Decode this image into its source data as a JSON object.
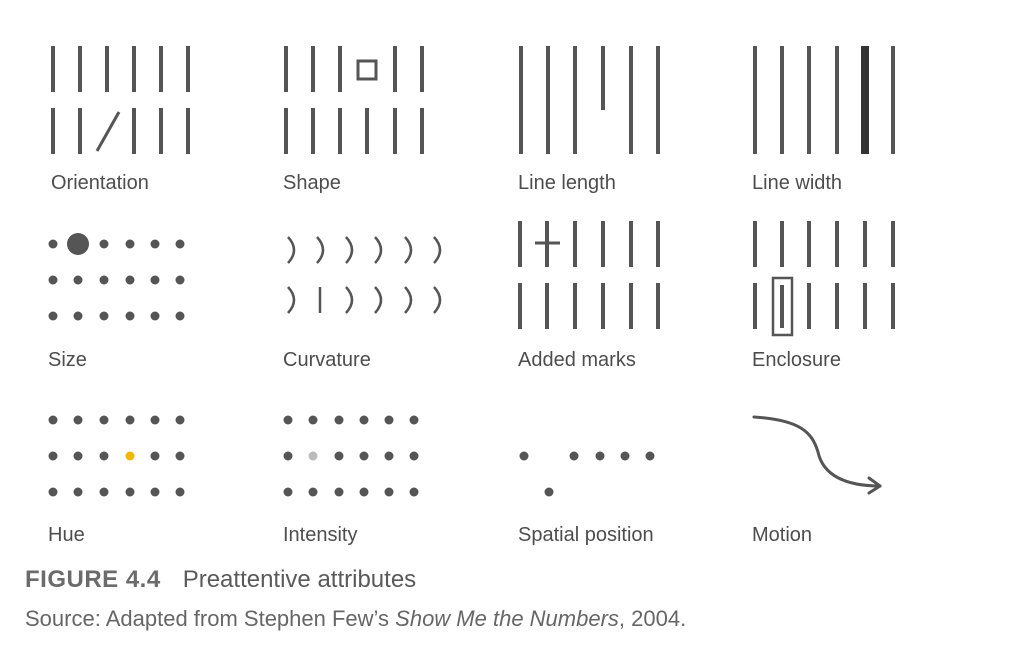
{
  "colors": {
    "ink": "#555555",
    "hue_highlight": "#f2b705",
    "intensity_highlight": "#bbbbbb",
    "caption": "#5a5a5a"
  },
  "attributes": [
    {
      "id": "orientation",
      "label": "Orientation"
    },
    {
      "id": "shape",
      "label": "Shape"
    },
    {
      "id": "line-length",
      "label": "Line length"
    },
    {
      "id": "line-width",
      "label": "Line width"
    },
    {
      "id": "size",
      "label": "Size"
    },
    {
      "id": "curvature",
      "label": "Curvature"
    },
    {
      "id": "added-marks",
      "label": "Added marks"
    },
    {
      "id": "enclosure",
      "label": "Enclosure"
    },
    {
      "id": "hue",
      "label": "Hue"
    },
    {
      "id": "intensity",
      "label": "Intensity"
    },
    {
      "id": "spatial-position",
      "label": "Spatial position"
    },
    {
      "id": "motion",
      "label": "Motion"
    }
  ],
  "caption": {
    "figure_number": "FIGURE 4.4",
    "title": "Preattentive attributes"
  },
  "source": {
    "prefix": "Source: Adapted from Stephen Few’s ",
    "book": "Show Me the Numbers",
    "suffix": ", 2004."
  }
}
